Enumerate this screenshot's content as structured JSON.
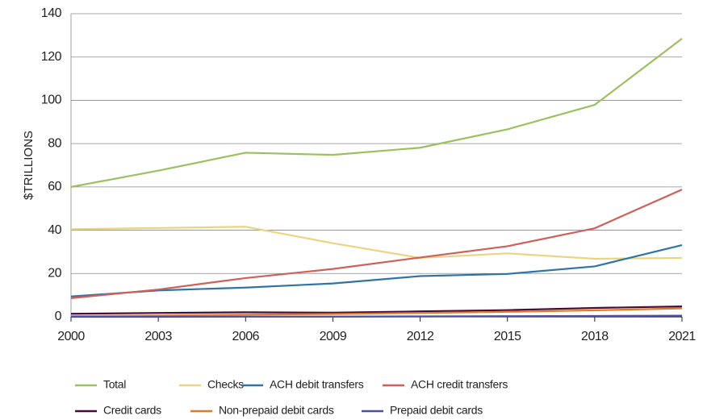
{
  "chart_data": {
    "type": "line",
    "y_label": "$TRILLIONS",
    "x": [
      2000,
      2003,
      2006,
      2009,
      2012,
      2015,
      2018,
      2021
    ],
    "xlim": [
      2000,
      2021
    ],
    "xticks": [
      2000,
      2003,
      2006,
      2009,
      2012,
      2015,
      2018,
      2021
    ],
    "ylim": [
      0,
      140
    ],
    "yticks": [
      0,
      20,
      40,
      60,
      80,
      100,
      120,
      140
    ],
    "grid": true,
    "legend": "bottom",
    "series": [
      {
        "name": "Total",
        "color": "#9bc15e",
        "values": [
          60,
          67.5,
          75.8,
          74.8,
          78.1,
          86.6,
          97.9,
          128.5
        ]
      },
      {
        "name": "Checks",
        "color": "#ead482",
        "values": [
          40.5,
          41,
          41.6,
          34,
          27.2,
          29.3,
          26.8,
          27.2
        ]
      },
      {
        "name": "ACH debit transfers",
        "color": "#2f74a5",
        "values": [
          9.4,
          12.2,
          13.5,
          15.4,
          18.8,
          19.8,
          23.3,
          33.1
        ]
      },
      {
        "name": "ACH credit transfers",
        "color": "#cf5f58",
        "values": [
          8.6,
          12.6,
          17.9,
          22.1,
          27.4,
          32.6,
          40.9,
          58.8
        ]
      },
      {
        "name": "Credit cards",
        "color": "#4a0b38",
        "values": [
          1.4,
          1.8,
          2.1,
          1.9,
          2.5,
          3.1,
          4.1,
          4.8
        ]
      },
      {
        "name": "Non-prepaid debit cards",
        "color": "#e07b25",
        "values": [
          0.3,
          0.6,
          1.0,
          1.3,
          1.8,
          2.3,
          3.0,
          3.9
        ]
      },
      {
        "name": "Prepaid debit cards",
        "color": "#4e4fa0",
        "values": [
          0,
          0,
          0.1,
          0.1,
          0.2,
          0.3,
          0.4,
          0.5
        ]
      }
    ]
  }
}
